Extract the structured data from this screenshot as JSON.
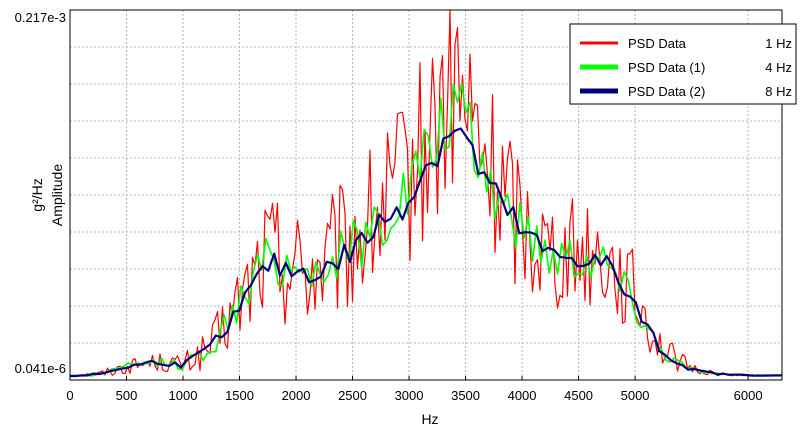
{
  "chart_data": {
    "type": "line",
    "title": "",
    "xlabel": "Hz",
    "ylabel_unit": "g²/Hz",
    "ylabel": "Amplitude",
    "xlim": [
      0,
      6300
    ],
    "x_ticks": [
      0,
      500,
      1000,
      1500,
      2000,
      2500,
      3000,
      3500,
      4000,
      4500,
      5000,
      6000
    ],
    "y_tick_labels": [
      "0.217e-3",
      "0.041e-6"
    ],
    "grid": true,
    "legend_position": "top-right",
    "colors": {
      "red": "#ff0000",
      "green": "#00ff00",
      "navy": "#00007f"
    },
    "series": [
      {
        "name": "PSD Data",
        "resolution_label": "1 Hz",
        "color": "#ff0000",
        "x": [
          0,
          250,
          500,
          750,
          1000,
          1250,
          1500,
          1750,
          2000,
          2250,
          2500,
          2750,
          3000,
          3250,
          3400,
          3500,
          3750,
          4000,
          4250,
          4500,
          4750,
          5000,
          5250,
          5500,
          5750,
          6000,
          6300
        ],
        "y": [
          0,
          0.005,
          0.025,
          0.04,
          0.03,
          0.08,
          0.2,
          0.35,
          0.3,
          0.3,
          0.37,
          0.45,
          0.55,
          0.7,
          0.82,
          0.72,
          0.55,
          0.43,
          0.35,
          0.35,
          0.33,
          0.22,
          0.07,
          0.02,
          0.005,
          0.002,
          0.001
        ],
        "spread": [
          0.005,
          0.01,
          0.02,
          0.025,
          0.03,
          0.06,
          0.12,
          0.18,
          0.18,
          0.18,
          0.2,
          0.22,
          0.25,
          0.3,
          0.35,
          0.3,
          0.25,
          0.2,
          0.17,
          0.15,
          0.15,
          0.12,
          0.05,
          0.015,
          0.005,
          0.002,
          0.001
        ]
      },
      {
        "name": "PSD Data (1)",
        "resolution_label": "4 Hz",
        "color": "#00ff00",
        "x": [
          0,
          250,
          500,
          750,
          1000,
          1250,
          1500,
          1750,
          2000,
          2250,
          2500,
          2750,
          3000,
          3250,
          3400,
          3500,
          3750,
          4000,
          4250,
          4500,
          4750,
          5000,
          5250,
          5500,
          5750,
          6000,
          6300
        ],
        "y": [
          0,
          0.005,
          0.025,
          0.04,
          0.03,
          0.08,
          0.2,
          0.33,
          0.3,
          0.3,
          0.36,
          0.43,
          0.52,
          0.66,
          0.75,
          0.68,
          0.52,
          0.41,
          0.34,
          0.34,
          0.32,
          0.2,
          0.065,
          0.018,
          0.005,
          0.002,
          0.001
        ],
        "spread": [
          0.003,
          0.006,
          0.01,
          0.012,
          0.015,
          0.03,
          0.05,
          0.07,
          0.07,
          0.07,
          0.08,
          0.09,
          0.1,
          0.11,
          0.12,
          0.11,
          0.1,
          0.08,
          0.07,
          0.07,
          0.07,
          0.05,
          0.02,
          0.008,
          0.003,
          0.001,
          0.001
        ]
      },
      {
        "name": "PSD Data (2)",
        "resolution_label": "8 Hz",
        "color": "#00007f",
        "x": [
          0,
          250,
          500,
          750,
          1000,
          1250,
          1500,
          1750,
          2000,
          2250,
          2500,
          2750,
          3000,
          3250,
          3400,
          3500,
          3750,
          4000,
          4250,
          4500,
          4750,
          5000,
          5250,
          5500,
          5750,
          6000,
          6300
        ],
        "y": [
          0,
          0.005,
          0.025,
          0.04,
          0.03,
          0.08,
          0.19,
          0.31,
          0.29,
          0.29,
          0.35,
          0.42,
          0.5,
          0.63,
          0.7,
          0.65,
          0.5,
          0.4,
          0.33,
          0.33,
          0.31,
          0.19,
          0.06,
          0.017,
          0.005,
          0.002,
          0.001
        ],
        "spread": [
          0.002,
          0.003,
          0.006,
          0.007,
          0.008,
          0.015,
          0.025,
          0.035,
          0.035,
          0.035,
          0.04,
          0.045,
          0.05,
          0.055,
          0.06,
          0.055,
          0.05,
          0.04,
          0.035,
          0.035,
          0.035,
          0.025,
          0.01,
          0.004,
          0.002,
          0.001,
          0.001
        ]
      }
    ]
  }
}
